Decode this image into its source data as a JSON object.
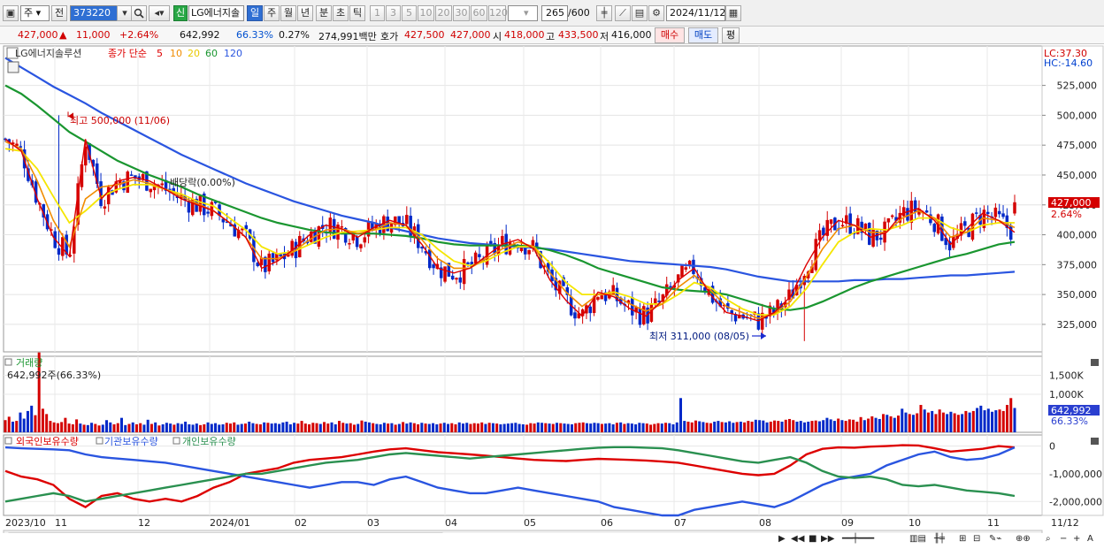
{
  "toolbar": {
    "period_select": "주",
    "prev_button": "전",
    "code": "373220",
    "new_badge": "신",
    "stock_name": "LG에너지솔",
    "timeframes": [
      "일",
      "주",
      "월",
      "년",
      "분",
      "초",
      "틱"
    ],
    "active_timeframe": "일",
    "intervals": [
      "1",
      "3",
      "5",
      "10",
      "20",
      "30",
      "60",
      "120"
    ],
    "count": "265",
    "count_total": "/600",
    "date": "2024/11/12"
  },
  "info_bar": {
    "price": "427,000",
    "change_arrow": "▲",
    "change": "11,000",
    "change_pct": "+2.64%",
    "volume": "642,992",
    "volume_ratio": "66.33%",
    "turnover": "0.27%",
    "trade_value": "274,991백만",
    "bid_label": "호가",
    "bid1": "427,500",
    "bid2": "427,000",
    "open_label": "시",
    "open": "418,000",
    "high_label": "고",
    "high": "433,500",
    "low_label": "저",
    "low": "416,000",
    "buy_button": "매수",
    "sell_button": "매도",
    "avg_button": "평"
  },
  "price_pane": {
    "legend_name": "LG에너지솔루션",
    "legend_label": "종가 단순",
    "ma_labels": [
      "5",
      "10",
      "20",
      "60",
      "120"
    ],
    "high_annotation": "최고 500,000 (11/06)",
    "low_annotation": "최저 311,000 (08/05)",
    "dividend_annotation": "배당락(0.00%)",
    "lc": "LC:37.30",
    "hc": "HC:-14.60",
    "current_price_tag": "427,000",
    "current_pct_tag": "2.64%"
  },
  "volume_pane": {
    "title": "거래량",
    "value_label": "642,992주(66.33%)",
    "current_tag": "642,992",
    "pct_tag": "66.33%"
  },
  "holding_pane": {
    "legend": [
      "외국인보유수량",
      "기관보유수량",
      "개인보유수량"
    ]
  },
  "x_axis_labels": [
    "2023/10",
    "11",
    "12",
    "2024/01",
    "02",
    "03",
    "04",
    "05",
    "06",
    "07",
    "08",
    "09",
    "10",
    "11",
    "11/12"
  ],
  "colors": {
    "ma5": "#dd0000",
    "ma10": "#f08c00",
    "ma20": "#f5e600",
    "ma60": "#1a9630",
    "ma120": "#2a55e0",
    "up": "#d40000",
    "down": "#0028c8",
    "foreign": "#dd0000",
    "institution": "#2a55e0",
    "individual": "#2a9050"
  },
  "chart_data": [
    {
      "type": "candlestick",
      "title": "LG에너지솔루션 일봉",
      "y_ticks": [
        325000,
        350000,
        375000,
        400000,
        425000,
        450000,
        475000,
        500000,
        525000
      ],
      "y_tick_labels": [
        "325,000",
        "350,000",
        "375,000",
        "400,000",
        "425,000",
        "450,000",
        "475,000",
        "500,000",
        "525,000"
      ],
      "ylim": [
        302000,
        558000
      ],
      "series": [
        {
          "name": "5",
          "values": [
            480000,
            470000,
            430000,
            398000,
            382000,
            480000,
            430000,
            445000,
            448000,
            445000,
            438000,
            430000,
            425000,
            420000,
            410000,
            398000,
            372000,
            378000,
            388000,
            400000,
            408000,
            405000,
            398000,
            406000,
            412000,
            408000,
            392000,
            372000,
            368000,
            372000,
            382000,
            392000,
            396000,
            388000,
            362000,
            345000,
            332000,
            352000,
            348000,
            338000,
            332000,
            345000,
            362000,
            372000,
            350000,
            335000,
            332000,
            328000,
            335000,
            348000,
            375000,
            398000,
            412000,
            408000,
            398000,
            402000,
            418000,
            422000,
            412000,
            392000,
            405000,
            418000,
            412000,
            402000
          ]
        },
        {
          "name": "10",
          "values": [
            478000,
            472000,
            445000,
            412000,
            390000,
            430000,
            440000,
            442000,
            446000,
            443000,
            438000,
            432000,
            426000,
            420000,
            410000,
            398000,
            380000,
            380000,
            386000,
            396000,
            404000,
            405000,
            401000,
            404000,
            410000,
            408000,
            396000,
            380000,
            372000,
            372000,
            380000,
            388000,
            394000,
            390000,
            368000,
            352000,
            340000,
            350000,
            350000,
            342000,
            336000,
            342000,
            356000,
            366000,
            354000,
            340000,
            335000,
            330000,
            334000,
            344000,
            365000,
            388000,
            405000,
            408000,
            402000,
            402000,
            414000,
            420000,
            414000,
            398000,
            402000,
            414000,
            412000,
            406000
          ]
        },
        {
          "name": "20",
          "values": [
            472000,
            470000,
            455000,
            432000,
            410000,
            420000,
            432000,
            438000,
            442000,
            442000,
            438000,
            434000,
            428000,
            424000,
            414000,
            404000,
            390000,
            384000,
            386000,
            392000,
            398000,
            402000,
            403000,
            404000,
            406000,
            406000,
            400000,
            388000,
            378000,
            374000,
            378000,
            385000,
            390000,
            390000,
            376000,
            360000,
            350000,
            350000,
            352000,
            348000,
            342000,
            342000,
            350000,
            360000,
            356000,
            346000,
            338000,
            333000,
            333000,
            340000,
            355000,
            375000,
            394000,
            402000,
            405000,
            404000,
            408000,
            414000,
            414000,
            406000,
            402000,
            408000,
            410000,
            410000
          ]
        },
        {
          "name": "60",
          "values": [
            525000,
            518000,
            508000,
            497000,
            486000,
            478000,
            470000,
            462000,
            456000,
            450000,
            445000,
            440000,
            434000,
            429000,
            424000,
            419000,
            414000,
            410000,
            407000,
            404000,
            402000,
            401000,
            401000,
            401000,
            400000,
            399000,
            397000,
            394000,
            392000,
            391000,
            391000,
            391000,
            391000,
            390000,
            387000,
            383000,
            378000,
            372000,
            368000,
            364000,
            360000,
            356000,
            354000,
            353000,
            352000,
            350000,
            346000,
            342000,
            338000,
            337000,
            339000,
            344000,
            350000,
            356000,
            361000,
            365000,
            369000,
            373000,
            377000,
            381000,
            384000,
            388000,
            392000,
            394000
          ]
        },
        {
          "name": "120",
          "values": [
            548000,
            540000,
            532000,
            524000,
            517000,
            510000,
            502000,
            495000,
            488000,
            481000,
            474000,
            467000,
            461000,
            455000,
            449000,
            443000,
            438000,
            433000,
            428000,
            424000,
            420000,
            416000,
            413000,
            410000,
            406000,
            403000,
            400000,
            397000,
            395000,
            393000,
            392000,
            391000,
            390000,
            389000,
            388000,
            386000,
            384000,
            382000,
            380000,
            378000,
            377000,
            376000,
            375000,
            374000,
            373000,
            371000,
            368000,
            365000,
            363000,
            361000,
            361000,
            361000,
            361000,
            362000,
            362000,
            363000,
            363000,
            364000,
            365000,
            366000,
            366000,
            367000,
            368000,
            369000
          ]
        }
      ],
      "high_point": {
        "date": "11/06",
        "value": 500000
      },
      "low_point": {
        "date": "08/05",
        "value": 311000
      },
      "last": {
        "open": 418000,
        "high": 433500,
        "low": 416000,
        "close": 427000
      }
    },
    {
      "type": "bar",
      "title": "거래량",
      "y_tick_labels": [
        "1,500K",
        "1,000K"
      ],
      "ylim": [
        0,
        2000000
      ],
      "values": [
        320,
        410,
        280,
        300,
        520,
        360,
        560,
        700,
        450,
        2100,
        620,
        480,
        300,
        260,
        240,
        270,
        380,
        230,
        210,
        340,
        230,
        200,
        190,
        250,
        220,
        180,
        200,
        320,
        260,
        210,
        240,
        380,
        190,
        220,
        260,
        210,
        240,
        200,
        330,
        220,
        260,
        180,
        210,
        250,
        230,
        200,
        240,
        220,
        280,
        210,
        200,
        230,
        190,
        210,
        260,
        220,
        240,
        200,
        210,
        250,
        230,
        260,
        200,
        220,
        230,
        280,
        240,
        220,
        210,
        260,
        250,
        230,
        240,
        220,
        260,
        280,
        210,
        250,
        230,
        300,
        230,
        210,
        250,
        240,
        220,
        270,
        230,
        260,
        210,
        300,
        250,
        230,
        240,
        200,
        220,
        310,
        280,
        260,
        240,
        220,
        210,
        250,
        230,
        240,
        200,
        220,
        270,
        230,
        260,
        240,
        210,
        250,
        230,
        220,
        240,
        210,
        230,
        250,
        220,
        240,
        210,
        260,
        230,
        250,
        220,
        240,
        230,
        260,
        220,
        250,
        240,
        230,
        210,
        220,
        230,
        240,
        250,
        220,
        210,
        200,
        240,
        230,
        260,
        250,
        240,
        230,
        220,
        250,
        240,
        230,
        220,
        210,
        240,
        250,
        260,
        240,
        230,
        250,
        240,
        220,
        230,
        240,
        210,
        250,
        260,
        220,
        240,
        230,
        210,
        250,
        240,
        230,
        200,
        220,
        240,
        230,
        250,
        240,
        210,
        260,
        900,
        300,
        280,
        260,
        310,
        290,
        270,
        250,
        240,
        280,
        300,
        270,
        260,
        290,
        250,
        270,
        280,
        260,
        300,
        280,
        330,
        320,
        310,
        260,
        280,
        310,
        300,
        280,
        330,
        350,
        320,
        280,
        300,
        260,
        280,
        300,
        310,
        290,
        320,
        380,
        340,
        300,
        360,
        320,
        300,
        340,
        330,
        280,
        400,
        320,
        360,
        420,
        380,
        350,
        480,
        460,
        420,
        380,
        440,
        620,
        520,
        480,
        460,
        500,
        720,
        600,
        520,
        560,
        480,
        600,
        520,
        480,
        540,
        500,
        460,
        480,
        560,
        520,
        560,
        640,
        700,
        580,
        620,
        540,
        580,
        600,
        560,
        720,
        900,
        640
      ]
    },
    {
      "type": "line",
      "title": "보유수량",
      "y_ticks": [
        0,
        -1000000,
        -2000000
      ],
      "y_tick_labels": [
        "0",
        "-1,000,000",
        "-2,000,000"
      ],
      "ylim": [
        -2500000,
        400000
      ],
      "series": [
        {
          "name": "외국인보유수량",
          "values": [
            -900,
            -1100,
            -1200,
            -1400,
            -1900,
            -2200,
            -1800,
            -1700,
            -1900,
            -2000,
            -1900,
            -2000,
            -1800,
            -1500,
            -1300,
            -1000,
            -900,
            -800,
            -600,
            -500,
            -450,
            -400,
            -300,
            -200,
            -120,
            -80,
            -150,
            -220,
            -260,
            -300,
            -350,
            -400,
            -450,
            -500,
            -520,
            -540,
            -500,
            -460,
            -480,
            -500,
            -520,
            -560,
            -600,
            -700,
            -800,
            -900,
            -1000,
            -1050,
            -1000,
            -700,
            -300,
            -100,
            -50,
            -60,
            -20,
            0,
            30,
            20,
            -80,
            -200,
            -150,
            -100,
            0,
            -50
          ]
        },
        {
          "name": "기관보유수량",
          "values": [
            -50,
            -80,
            -100,
            -120,
            -150,
            -300,
            -400,
            -450,
            -500,
            -550,
            -600,
            -700,
            -800,
            -900,
            -1000,
            -1100,
            -1200,
            -1300,
            -1400,
            -1500,
            -1400,
            -1300,
            -1300,
            -1400,
            -1200,
            -1100,
            -1300,
            -1500,
            -1600,
            -1700,
            -1700,
            -1600,
            -1500,
            -1600,
            -1700,
            -1800,
            -1900,
            -2000,
            -2200,
            -2300,
            -2400,
            -2500,
            -2500,
            -2300,
            -2200,
            -2100,
            -2000,
            -2100,
            -2200,
            -2000,
            -1700,
            -1400,
            -1200,
            -1100,
            -1000,
            -700,
            -500,
            -300,
            -200,
            -400,
            -500,
            -450,
            -300,
            -50
          ]
        },
        {
          "name": "개인보유수량",
          "values": [
            -2000,
            -1900,
            -1800,
            -1700,
            -1800,
            -2000,
            -1900,
            -1800,
            -1700,
            -1600,
            -1500,
            -1400,
            -1300,
            -1200,
            -1100,
            -1000,
            -1000,
            -900,
            -800,
            -700,
            -600,
            -550,
            -500,
            -400,
            -300,
            -250,
            -300,
            -350,
            -400,
            -450,
            -400,
            -350,
            -300,
            -250,
            -200,
            -150,
            -100,
            -60,
            -40,
            -40,
            -60,
            -80,
            -150,
            -250,
            -350,
            -450,
            -550,
            -600,
            -500,
            -400,
            -600,
            -900,
            -1100,
            -1150,
            -1100,
            -1200,
            -1400,
            -1450,
            -1400,
            -1500,
            -1600,
            -1650,
            -1700,
            -1800
          ]
        }
      ]
    }
  ]
}
